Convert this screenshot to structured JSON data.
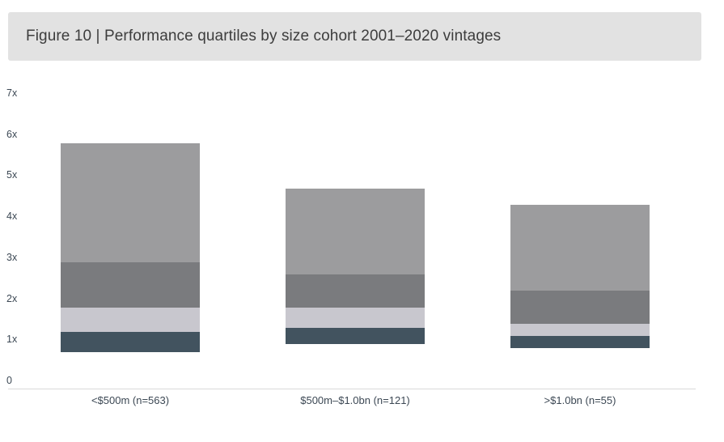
{
  "figure_title": "Figure 10 | Performance quartiles by size cohort 2001–2020 vintages",
  "colors": {
    "background": "#ffffff",
    "banner_background": "#e2e2e2",
    "title_text": "#3d3d3d",
    "axis_line": "#d9d9d9",
    "tick_text": "#3c4854",
    "category_text": "#3c4854"
  },
  "chart_data": {
    "type": "bar",
    "subtype": "floating_stacked_quartile_ranges",
    "title": "Figure 10 | Performance quartiles by size cohort 2001–2020 vintages",
    "xlabel": "",
    "ylabel": "",
    "ylim": [
      0,
      7
    ],
    "grid": false,
    "legend": false,
    "value_unit": "x (multiple)",
    "y_axis": {
      "ticks": [
        {
          "value": 0,
          "label": "0"
        },
        {
          "value": 1,
          "label": "1x"
        },
        {
          "value": 2,
          "label": "2x"
        },
        {
          "value": 3,
          "label": "3x"
        },
        {
          "value": 4,
          "label": "4x"
        },
        {
          "value": 5,
          "label": "5x"
        },
        {
          "value": 6,
          "label": "6x"
        },
        {
          "value": 7,
          "label": "7x"
        }
      ]
    },
    "segments": [
      {
        "name": "first-quartile-band",
        "color": "#42535f"
      },
      {
        "name": "second-quartile-band",
        "color": "#c8c7ce"
      },
      {
        "name": "third-quartile-band",
        "color": "#7a7b7e"
      },
      {
        "name": "top-quartile-band",
        "color": "#9c9c9e"
      }
    ],
    "categories": [
      "<$500m (n=563)",
      "$500m–$1.0bn (n=121)",
      ">$1.0bn (n=55)"
    ],
    "bars": [
      {
        "category": "<$500m (n=563)",
        "boundaries": [
          0.9,
          1.4,
          2.0,
          3.1,
          6.0
        ]
      },
      {
        "category": "$500m–$1.0bn (n=121)",
        "boundaries": [
          1.1,
          1.5,
          2.0,
          2.8,
          4.9
        ]
      },
      {
        "category": ">$1.0bn (n=55)",
        "boundaries": [
          1.0,
          1.3,
          1.6,
          2.4,
          4.5
        ]
      }
    ]
  }
}
